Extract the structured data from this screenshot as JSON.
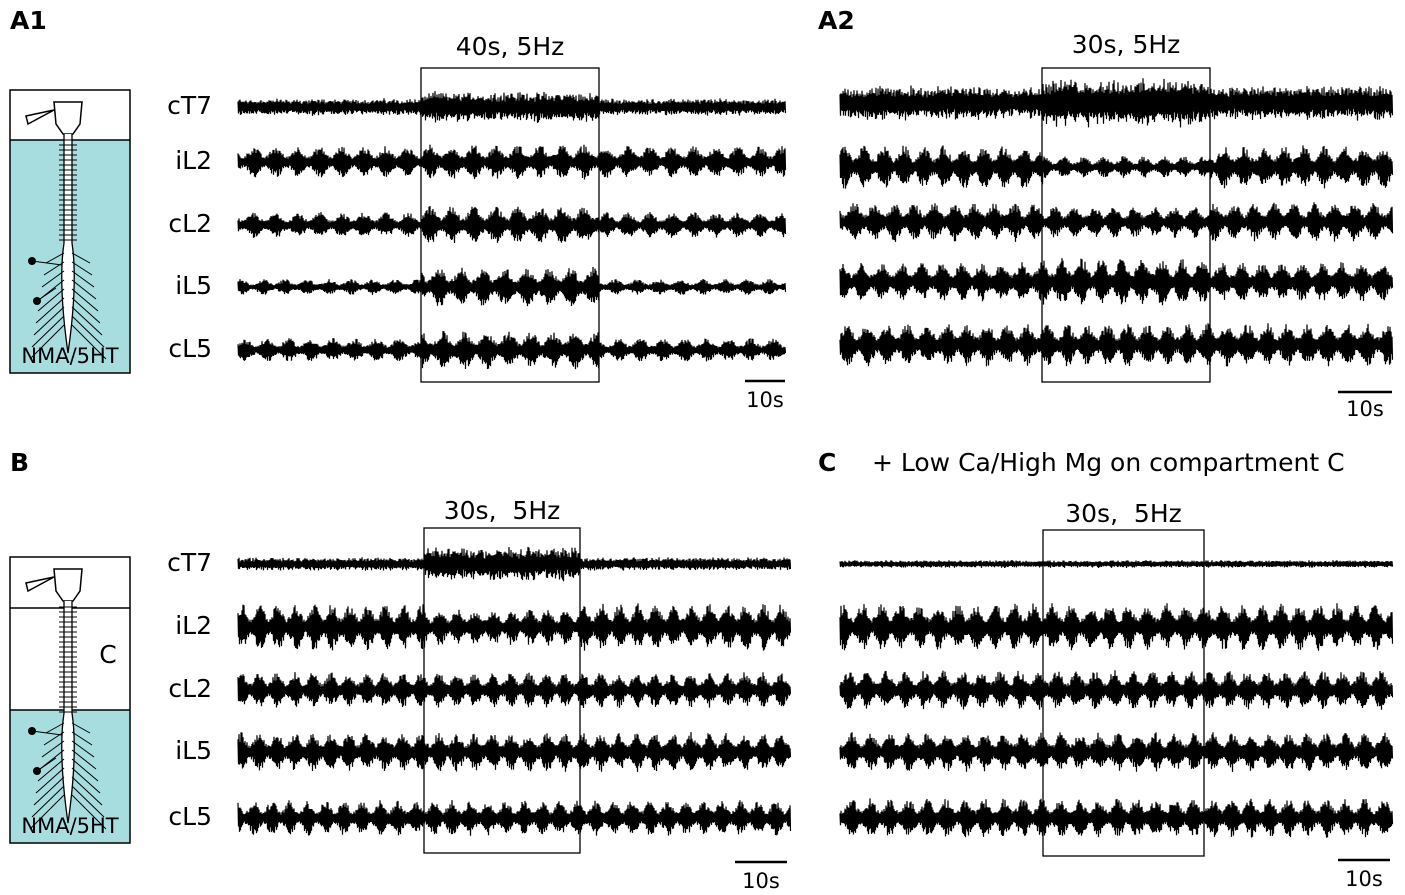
{
  "panels": [
    {
      "label": "A1",
      "stimulus": "40s, 5Hz",
      "traces": [
        "cT7",
        "iL2",
        "cL2",
        "iL5",
        "cL5"
      ],
      "scale_bar": "10s",
      "bath": "NMA/5HT"
    },
    {
      "label": "A2",
      "stimulus": "30s, 5Hz",
      "scale_bar": "10s"
    },
    {
      "label": "B",
      "stimulus": "30s,  5Hz",
      "traces": [
        "cT7",
        "iL2",
        "cL2",
        "iL5",
        "cL5"
      ],
      "scale_bar": "10s",
      "bath": "NMA/5HT",
      "compartment": "C"
    },
    {
      "label": "C",
      "condition": "+ Low Ca/High Mg on compartment C",
      "stimulus": "30s,  5Hz",
      "scale_bar": "10s"
    }
  ]
}
